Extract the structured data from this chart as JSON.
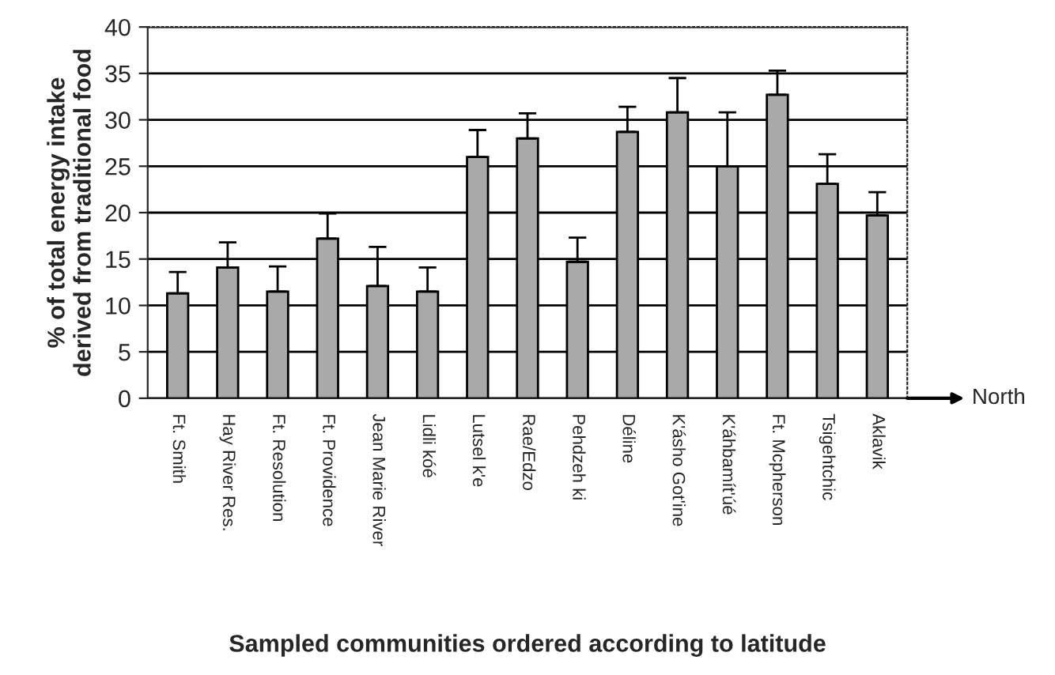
{
  "chart_data": {
    "type": "bar",
    "xlabel": "Sampled communities ordered according to latitude",
    "ylabel": "% of total energy intake\nderived from traditional food",
    "categories": [
      "Ft. Smith",
      "Hay River Res.",
      "Ft. Resolution",
      "Ft. Providence",
      "Jean Marie River",
      "Lidli kóé",
      "Lutsel k'e",
      "Rae/Edzo",
      "Pehdzeh ki",
      "Déline",
      "K'ásho Got'ine",
      "K'áhbamít'úé",
      "Ft. Mcpherson",
      "Tsigehtchic",
      "Aklavik"
    ],
    "values": [
      11.3,
      14.1,
      11.5,
      17.2,
      12.1,
      11.5,
      26.0,
      28.0,
      14.7,
      28.7,
      30.8,
      25.0,
      32.7,
      23.1,
      19.7
    ],
    "errors": [
      [
        11.3,
        13.6
      ],
      [
        14.1,
        16.8
      ],
      [
        11.5,
        14.2
      ],
      [
        17.2,
        19.9
      ],
      [
        12.1,
        16.3
      ],
      [
        11.5,
        14.1
      ],
      [
        26.0,
        28.9
      ],
      [
        28.0,
        30.7
      ],
      [
        14.7,
        17.3
      ],
      [
        28.7,
        31.4
      ],
      [
        30.8,
        34.5
      ],
      [
        25.0,
        30.8
      ],
      [
        32.7,
        35.3
      ],
      [
        23.1,
        26.3
      ],
      [
        19.7,
        22.2
      ]
    ],
    "color": "#a9a9a9",
    "ylim": [
      0,
      40
    ],
    "yticks": [
      0,
      5,
      10,
      15,
      20,
      25,
      30,
      35,
      40
    ],
    "grid": "y",
    "annotations": [
      "North"
    ]
  }
}
